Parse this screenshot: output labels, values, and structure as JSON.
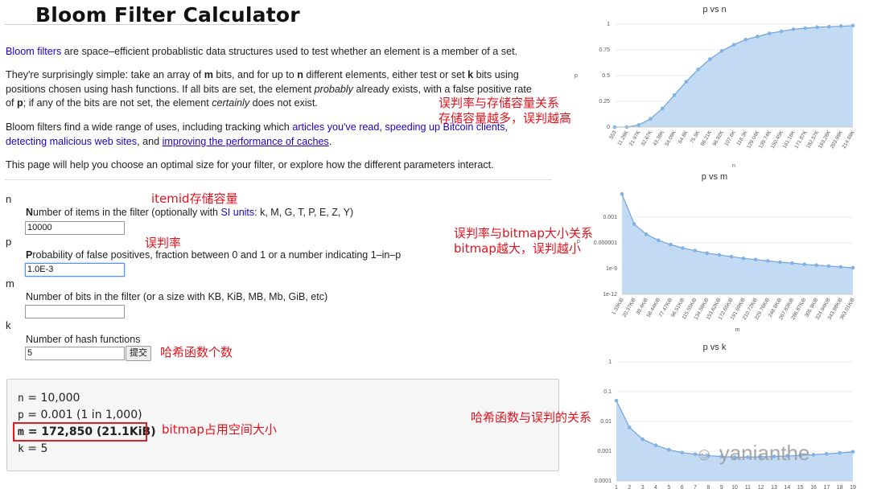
{
  "page": {
    "title": "Bloom Filter Calculator",
    "intro": {
      "link": "Bloom filters",
      "text": " are space–efficient probablistic data structures used to test whether an element is a member of a set."
    },
    "p2": {
      "a1": "They're surprisingly simple: take an array of ",
      "m": "m",
      "a2": " bits, and for up to ",
      "n": "n",
      "a3": " different elements, either test or set ",
      "k": "k",
      "a4": " bits using",
      "l2": "positions chosen using hash functions. If all bits are set, the element ",
      "probably": "probably",
      "l2b": " already exists, with a false positive rate",
      "l3a": "of ",
      "p": "p",
      "l3b": "; if any of the bits are not set, the element ",
      "certainly": "certainly",
      "l3c": " does not exist."
    },
    "p3": {
      "a": "Bloom filters find a wide range of uses, including tracking which ",
      "link1": "articles you've read",
      "sep1": ", ",
      "link2": "speeding up Bitcoin clients",
      "sep2": ",",
      "link3": "detecting malicious web sites",
      "mid": ", and ",
      "link4": "improving the performance of caches",
      "end": "."
    },
    "p4": "This page will help you choose an optimal size for your filter, or explore how the different parameters interact."
  },
  "form": {
    "n": {
      "var": "n",
      "label_bold": "N",
      "label": "umber of items in the filter (optionally with ",
      "link": "SI units",
      "label_end": ": k, M, G, T, P, E, Z, Y)",
      "value": "10000"
    },
    "p": {
      "var": "p",
      "label_bold": "P",
      "label": "robability of false positives, fraction between 0 and 1 or a number indicating 1–in–p",
      "value": "1.0E-3"
    },
    "m": {
      "var": "m",
      "label": "Number of bits in the filter (or a size with KB, KiB, MB, Mb, GiB, etc)",
      "value": ""
    },
    "k": {
      "var": "k",
      "label": "Number of hash functions",
      "value": "5"
    },
    "submit_label": "提交"
  },
  "results": {
    "n": {
      "key": "n",
      "value": " = 10,000"
    },
    "p": {
      "key": "p",
      "value": " = 0.001 (1 in 1,000)"
    },
    "m": {
      "key": "m",
      "value": " = 172,850 (21.1KiB)"
    },
    "k": {
      "key": "k",
      "value": " = 5"
    }
  },
  "annotations": {
    "pn_1": "误判率与存储容量关系",
    "pn_2": "存储容量越多，误判越高",
    "itemid": "itemid存储容量",
    "p": "误判率",
    "pm_1": "误判率与bitmap大小关系",
    "pm_2": "bitmap越大，误判越小",
    "k": "哈希函数个数",
    "m": "bitmap占用空间大小",
    "pk": "哈希函数与误判的关系"
  },
  "watermark": "yanianthe",
  "colors": {
    "fill": "#b8d4f2",
    "line": "#6fa4dc",
    "point": "#7fb2e6",
    "annotation": "#e0141e",
    "link": "#2200cc"
  },
  "chart_data": [
    {
      "type": "area",
      "title": "p vs n",
      "xlabel": "n",
      "ylabel": "p",
      "categories": [
        "553",
        "11.26K",
        "21.97K",
        "32.67K",
        "43.38K",
        "54.09K",
        "64.8K",
        "75.5K",
        "86.21K",
        "96.92K",
        "107.6K",
        "118.3K",
        "129.04K",
        "139.74K",
        "150.45K",
        "161.16K",
        "171.87K",
        "182.57K",
        "193.28K",
        "203.99K",
        "214.69K"
      ],
      "values": [
        0.0,
        0.0,
        0.02,
        0.08,
        0.18,
        0.31,
        0.44,
        0.56,
        0.66,
        0.74,
        0.8,
        0.85,
        0.88,
        0.91,
        0.93,
        0.95,
        0.96,
        0.97,
        0.975,
        0.98,
        0.985
      ],
      "yticks": [
        "0",
        "0.25",
        "0.5",
        "0.75",
        "1"
      ],
      "ylim": [
        0,
        1
      ]
    },
    {
      "type": "area",
      "title": "p vs m",
      "xlabel": "m",
      "ylabel": "p",
      "yscale": "log",
      "categories": [
        "1.33KiB",
        "20.37KiB",
        "39.4KiB",
        "58.44KiB",
        "77.47KiB",
        "96.51KiB",
        "115.55KiB",
        "134.58KiB",
        "153.62KiB",
        "172.65KiB",
        "191.69KiB",
        "210.72KiB",
        "229.76KiB",
        "248.8KiB",
        "267.83KiB",
        "286.87KiB",
        "305.9KiB",
        "324.94KiB",
        "343.98KiB",
        "363.01KiB"
      ],
      "log10_values": [
        -0.3,
        -3.8,
        -5.0,
        -5.7,
        -6.2,
        -6.6,
        -6.9,
        -7.2,
        -7.4,
        -7.6,
        -7.8,
        -7.95,
        -8.1,
        -8.25,
        -8.35,
        -8.5,
        -8.6,
        -8.7,
        -8.8,
        -8.9
      ],
      "yticks": [
        "1e-12",
        "1e-9",
        "0.000001",
        "0.001"
      ],
      "ylim_log10": [
        -12,
        0
      ]
    },
    {
      "type": "area",
      "title": "p vs k",
      "xlabel": "k",
      "ylabel": "p",
      "yscale": "log",
      "categories": [
        "1",
        "2",
        "3",
        "4",
        "5",
        "6",
        "7",
        "8",
        "9",
        "10",
        "11",
        "12",
        "13",
        "14",
        "15",
        "16",
        "17",
        "18",
        "19"
      ],
      "log10_values": [
        -1.3,
        -2.2,
        -2.6,
        -2.8,
        -2.95,
        -3.05,
        -3.1,
        -3.15,
        -3.18,
        -3.2,
        -3.2,
        -3.19,
        -3.18,
        -3.16,
        -3.14,
        -3.12,
        -3.09,
        -3.06,
        -3.02
      ],
      "yticks": [
        "0.0001",
        "0.001",
        "0.01",
        "0.1",
        "1"
      ],
      "ylim_log10": [
        -4,
        0
      ]
    }
  ]
}
